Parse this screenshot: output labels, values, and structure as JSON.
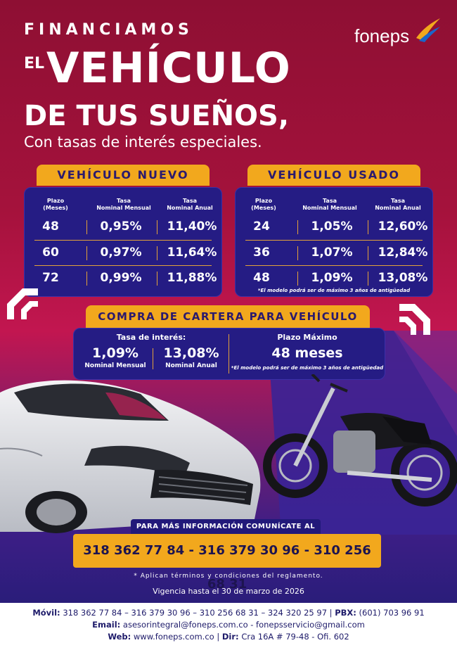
{
  "brand": {
    "name": "foneps",
    "colors": {
      "yellow": "#f2a81d",
      "navy": "#251c84",
      "crimson": "#a5123c"
    }
  },
  "headline": {
    "line1": "FINANCIAMOS",
    "line2_prefix": "EL",
    "line2_main": "VEHÍCULO",
    "line3": "DE TUS SUEÑOS,",
    "subtitle": "Con tasas de interés especiales."
  },
  "new_vehicle": {
    "title": "VEHÍCULO NUEVO",
    "headers": [
      "Plazo\n(Meses)",
      "Tasa\nNominal Mensual",
      "Tasa\nNominal Anual"
    ],
    "rows": [
      {
        "term": "48",
        "monthly": "0,95%",
        "annual": "11,40%"
      },
      {
        "term": "60",
        "monthly": "0,97%",
        "annual": "11,64%"
      },
      {
        "term": "72",
        "monthly": "0,99%",
        "annual": "11,88%"
      }
    ]
  },
  "used_vehicle": {
    "title": "VEHÍCULO USADO",
    "headers": [
      "Plazo\n(Meses)",
      "Tasa\nNominal Mensual",
      "Tasa\nNominal Anual"
    ],
    "rows": [
      {
        "term": "24",
        "monthly": "1,05%",
        "annual": "12,60%"
      },
      {
        "term": "36",
        "monthly": "1,07%",
        "annual": "12,84%"
      },
      {
        "term": "48",
        "monthly": "1,09%",
        "annual": "13,08%"
      }
    ],
    "note": "*El modelo podrá ser de máximo 3 años de antigüedad"
  },
  "portfolio": {
    "title": "COMPRA DE CARTERA PARA VEHÍCULO",
    "rate_label": "Tasa de interés:",
    "monthly_value": "1,09%",
    "monthly_label": "Nominal Mensual",
    "annual_value": "13,08%",
    "annual_label": "Nominal Anual",
    "term_label": "Plazo Máximo",
    "term_value": "48 meses",
    "note": "*El modelo podrá ser de máximo 3 años de antigüedad"
  },
  "contact": {
    "heading": "PARA MÁS INFORMACIÓN COMUNÍCATE AL",
    "phones": "318 362 77 84 - 316 379 30 96 - 310 256 68 31",
    "terms": "* Aplican términos y condiciones del reglamento.",
    "validity": "Vigencia hasta el 30 de marzo de 2026"
  },
  "footer": {
    "movil_label": "Móvil:",
    "movil_value": "318 362 77 84 – 316 379 30 96 – 310 256 68 31 – 324 320 25 97",
    "pbx_label": "PBX:",
    "pbx_value": "(601) 703 96 91",
    "email_label": "Email:",
    "email_value": "asesorintegral@foneps.com.co - fonepsservicio@gmail.com",
    "web_label": "Web:",
    "web_value": "www.foneps.com.co",
    "dir_label": "Dir:",
    "dir_value": "Cra 16A # 79-48 - Ofi. 602"
  }
}
